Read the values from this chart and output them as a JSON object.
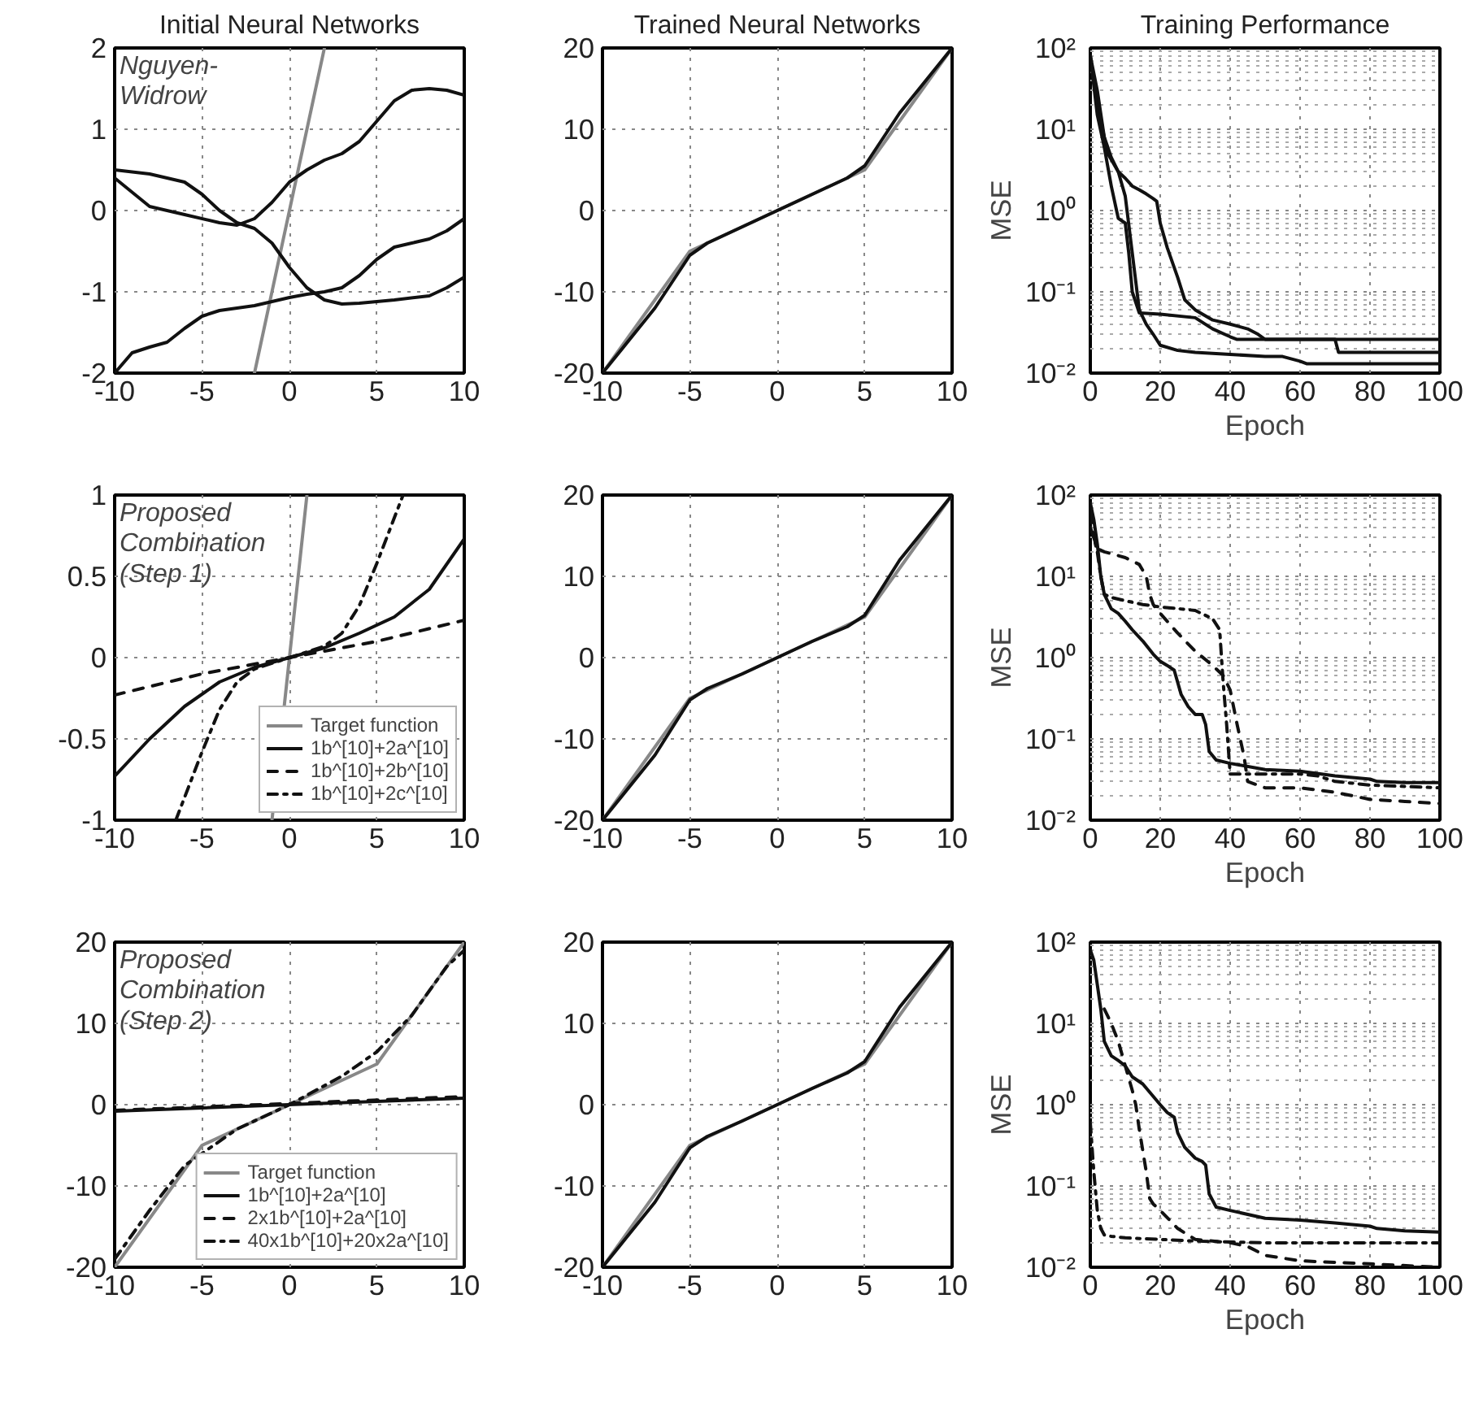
{
  "chart_data": [
    {
      "type": "line",
      "title": "Initial Neural Networks",
      "annotations": [
        "Nguyen-\nWidrow"
      ],
      "xlim": [
        -10,
        10
      ],
      "ylim": [
        -2,
        2
      ],
      "xticks": [
        -10,
        -5,
        0,
        5,
        10
      ],
      "yticks": [
        -2,
        -1,
        0,
        1,
        2
      ],
      "grid": true,
      "series": [
        {
          "color": "#888888",
          "line_style": "solid",
          "x": [
            -2,
            2
          ],
          "values": [
            -2,
            2
          ]
        },
        {
          "color": "#111111",
          "line_style": "solid",
          "x": [
            -10,
            -8,
            -6,
            -4,
            -3,
            -2,
            -1,
            0,
            1,
            2,
            3,
            4,
            5,
            6,
            7,
            8,
            9,
            10
          ],
          "values": [
            0.4,
            0.05,
            -0.05,
            -0.15,
            -0.18,
            -0.1,
            0.1,
            0.35,
            0.5,
            0.62,
            0.7,
            0.85,
            1.1,
            1.35,
            1.48,
            1.5,
            1.48,
            1.42
          ]
        },
        {
          "color": "#111111",
          "line_style": "solid",
          "x": [
            -10,
            -8,
            -6,
            -5,
            -4,
            -3,
            -2,
            -1,
            0,
            1,
            2,
            3,
            4,
            6,
            8,
            9,
            10
          ],
          "values": [
            0.5,
            0.45,
            0.35,
            0.2,
            0.0,
            -0.15,
            -0.22,
            -0.4,
            -0.7,
            -0.95,
            -1.1,
            -1.15,
            -1.14,
            -1.1,
            -1.05,
            -0.95,
            -0.82
          ]
        },
        {
          "color": "#111111",
          "line_style": "solid",
          "x": [
            -10,
            -9,
            -8,
            -7,
            -6,
            -5,
            -4,
            -3,
            -2,
            -1,
            0,
            1,
            2,
            3,
            4,
            5,
            6,
            7,
            8,
            9,
            10
          ],
          "values": [
            -2.0,
            -1.75,
            -1.68,
            -1.62,
            -1.45,
            -1.3,
            -1.23,
            -1.2,
            -1.17,
            -1.12,
            -1.07,
            -1.03,
            -1.0,
            -0.95,
            -0.8,
            -0.6,
            -0.45,
            -0.4,
            -0.35,
            -0.25,
            -0.1
          ]
        }
      ]
    },
    {
      "type": "line",
      "title": "Trained Neural Networks",
      "xlim": [
        -10,
        10
      ],
      "ylim": [
        -20,
        20
      ],
      "xticks": [
        -10,
        -5,
        0,
        5,
        10
      ],
      "yticks": [
        -20,
        -10,
        0,
        10,
        20
      ],
      "grid": true,
      "series": [
        {
          "color": "#888888",
          "line_style": "solid",
          "x": [
            -10,
            -5,
            5,
            10
          ],
          "values": [
            -20,
            -5,
            5,
            20
          ]
        },
        {
          "color": "#111111",
          "line_style": "solid",
          "x": [
            -10,
            -7,
            -5,
            -4,
            -2,
            0,
            2,
            4,
            5,
            7,
            10
          ],
          "values": [
            -20,
            -12,
            -5.5,
            -4,
            -2,
            0,
            2,
            4,
            5.5,
            12,
            20
          ]
        }
      ]
    },
    {
      "type": "line",
      "title": "Training Performance",
      "xlabel": "Epoch",
      "ylabel": "MSE",
      "log": "y",
      "xlim": [
        0,
        100
      ],
      "ylim": [
        0.01,
        100
      ],
      "xticks": [
        0,
        20,
        40,
        60,
        80,
        100
      ],
      "yticks": [
        {
          "value": 0.01,
          "label": "10⁻²"
        },
        {
          "value": 0.1,
          "label": "10⁻¹"
        },
        {
          "value": 1,
          "label": "10⁰"
        },
        {
          "value": 10,
          "label": "10¹"
        },
        {
          "value": 100,
          "label": "10²"
        }
      ],
      "grid": true,
      "series": [
        {
          "color": "#111111",
          "line_style": "solid",
          "x": [
            0,
            2,
            5,
            8,
            10,
            12,
            14,
            16,
            18,
            19,
            20,
            22,
            25,
            27,
            30,
            35,
            40,
            45,
            48,
            50,
            55,
            60,
            65,
            70,
            71,
            75,
            80,
            90,
            100
          ],
          "values": [
            80,
            20,
            5,
            3,
            2.5,
            2.0,
            1.8,
            1.6,
            1.4,
            1.3,
            0.7,
            0.35,
            0.15,
            0.08,
            0.06,
            0.045,
            0.04,
            0.035,
            0.03,
            0.026,
            0.026,
            0.026,
            0.026,
            0.026,
            0.018,
            0.018,
            0.018,
            0.018,
            0.018
          ]
        },
        {
          "color": "#111111",
          "line_style": "solid",
          "x": [
            0,
            2,
            4,
            6,
            8,
            10,
            11,
            12,
            14,
            20,
            30,
            35,
            40,
            42,
            50,
            60,
            80,
            100
          ],
          "values": [
            80,
            15,
            6,
            2,
            0.8,
            0.7,
            0.3,
            0.1,
            0.055,
            0.053,
            0.048,
            0.035,
            0.028,
            0.026,
            0.026,
            0.026,
            0.026,
            0.026
          ]
        },
        {
          "color": "#111111",
          "line_style": "solid",
          "x": [
            0,
            2,
            4,
            6,
            8,
            10,
            12,
            14,
            16,
            18,
            20,
            25,
            30,
            40,
            50,
            55,
            60,
            62,
            70,
            80,
            100
          ],
          "values": [
            80,
            30,
            8,
            4.5,
            3,
            1.5,
            0.3,
            0.06,
            0.04,
            0.03,
            0.022,
            0.019,
            0.018,
            0.017,
            0.016,
            0.016,
            0.014,
            0.013,
            0.013,
            0.013,
            0.013
          ]
        }
      ]
    },
    {
      "type": "line",
      "annotations": [
        "Proposed\nCombination\n(Step 1)"
      ],
      "xlim": [
        -10,
        10
      ],
      "ylim": [
        -1,
        1
      ],
      "xticks": [
        -10,
        -5,
        0,
        5,
        10
      ],
      "yticks": [
        -1,
        -0.5,
        0,
        0.5,
        1
      ],
      "grid": true,
      "legend": "bottom right",
      "series": [
        {
          "name": "Target function",
          "color": "#888888",
          "line_style": "solid",
          "x": [
            -1,
            1
          ],
          "values": [
            -1,
            1
          ]
        },
        {
          "name": "1b^[10]+2a^[10]",
          "color": "#111111",
          "line_style": "solid",
          "x": [
            -10,
            -8,
            -6,
            -4,
            -2,
            0,
            2,
            4,
            6,
            8,
            10
          ],
          "values": [
            -0.73,
            -0.5,
            -0.3,
            -0.15,
            -0.06,
            0,
            0.06,
            0.15,
            0.25,
            0.42,
            0.73
          ]
        },
        {
          "name": "1b^[10]+2b^[10]",
          "color": "#111111",
          "line_style": "dashed",
          "x": [
            -10,
            -5,
            0,
            5,
            10
          ],
          "values": [
            -0.23,
            -0.1,
            0,
            0.1,
            0.23
          ]
        },
        {
          "name": "1b^[10]+2c^[10]",
          "color": "#111111",
          "line_style": "dashdot",
          "x": [
            -6.5,
            -5,
            -4,
            -3,
            -2,
            0,
            2,
            3,
            4,
            5,
            6.5
          ],
          "values": [
            -1,
            -0.58,
            -0.32,
            -0.15,
            -0.07,
            0,
            0.07,
            0.15,
            0.32,
            0.58,
            1
          ]
        }
      ]
    },
    {
      "type": "line",
      "xlim": [
        -10,
        10
      ],
      "ylim": [
        -20,
        20
      ],
      "xticks": [
        -10,
        -5,
        0,
        5,
        10
      ],
      "yticks": [
        -20,
        -10,
        0,
        10,
        20
      ],
      "grid": true,
      "series": [
        {
          "color": "#888888",
          "line_style": "solid",
          "x": [
            -10,
            -5,
            5,
            10
          ],
          "values": [
            -20,
            -5,
            5,
            20
          ]
        },
        {
          "color": "#111111",
          "line_style": "solid",
          "x": [
            -10,
            -7,
            -5,
            -4,
            -2,
            0,
            2,
            4,
            5,
            7,
            10
          ],
          "values": [
            -20,
            -12,
            -5.2,
            -3.8,
            -2,
            0,
            2,
            3.8,
            5.2,
            12,
            20
          ]
        }
      ]
    },
    {
      "type": "line",
      "xlabel": "Epoch",
      "ylabel": "MSE",
      "log": "y",
      "xlim": [
        0,
        100
      ],
      "ylim": [
        0.01,
        100
      ],
      "xticks": [
        0,
        20,
        40,
        60,
        80,
        100
      ],
      "yticks": [
        {
          "value": 0.01,
          "label": "10⁻²"
        },
        {
          "value": 0.1,
          "label": "10⁻¹"
        },
        {
          "value": 1,
          "label": "10⁰"
        },
        {
          "value": 10,
          "label": "10¹"
        },
        {
          "value": 100,
          "label": "10²"
        }
      ],
      "grid": true,
      "series": [
        {
          "color": "#111111",
          "line_style": "solid",
          "x": [
            0,
            1,
            2,
            3,
            4,
            6,
            8,
            10,
            12,
            15,
            18,
            20,
            22,
            24,
            26,
            28,
            30,
            32,
            33,
            34,
            36,
            40,
            50,
            60,
            70,
            80,
            82,
            90,
            100
          ],
          "values": [
            80,
            50,
            25,
            10,
            6,
            4,
            3.5,
            2.8,
            2.2,
            1.6,
            1.1,
            0.9,
            0.8,
            0.7,
            0.35,
            0.25,
            0.2,
            0.2,
            0.15,
            0.07,
            0.055,
            0.05,
            0.042,
            0.04,
            0.035,
            0.032,
            0.03,
            0.029,
            0.029
          ]
        },
        {
          "color": "#111111",
          "line_style": "dashed",
          "x": [
            0,
            1,
            2,
            4,
            6,
            10,
            14,
            16,
            17,
            18,
            20,
            25,
            30,
            35,
            38,
            40,
            42,
            44,
            45,
            50,
            60,
            70,
            75,
            80,
            90,
            100
          ],
          "values": [
            60,
            30,
            22,
            20,
            19,
            17,
            14,
            10,
            6,
            4.5,
            3.5,
            2,
            1.2,
            0.8,
            0.6,
            0.4,
            0.15,
            0.06,
            0.03,
            0.025,
            0.025,
            0.022,
            0.02,
            0.018,
            0.017,
            0.016
          ]
        },
        {
          "color": "#111111",
          "line_style": "dashdot",
          "x": [
            0,
            1,
            2,
            3,
            4,
            6,
            10,
            15,
            20,
            25,
            30,
            35,
            37,
            38,
            39,
            40,
            45,
            50,
            60,
            65,
            70,
            80,
            100
          ],
          "values": [
            40,
            30,
            20,
            10,
            6,
            5.5,
            5,
            4.5,
            4.2,
            4,
            3.8,
            3,
            2.2,
            0.5,
            0.15,
            0.037,
            0.037,
            0.037,
            0.037,
            0.035,
            0.03,
            0.027,
            0.025
          ]
        }
      ]
    },
    {
      "type": "line",
      "annotations": [
        "Proposed\nCombination\n(Step 2)"
      ],
      "xlim": [
        -10,
        10
      ],
      "ylim": [
        -20,
        20
      ],
      "xticks": [
        -10,
        -5,
        0,
        5,
        10
      ],
      "yticks": [
        -20,
        -10,
        0,
        10,
        20
      ],
      "grid": true,
      "legend": "bottom right",
      "series": [
        {
          "name": "Target function",
          "color": "#888888",
          "line_style": "solid",
          "x": [
            -10,
            -5,
            5,
            10
          ],
          "values": [
            -20,
            -5,
            5,
            20
          ]
        },
        {
          "name": "1b^[10]+2a^[10]",
          "color": "#111111",
          "line_style": "solid",
          "x": [
            -10,
            10
          ],
          "values": [
            -0.8,
            0.8
          ]
        },
        {
          "name": "2x1b^[10]+2a^[10]",
          "color": "#111111",
          "line_style": "dashed",
          "x": [
            -10,
            10
          ],
          "values": [
            -0.7,
            1.0
          ]
        },
        {
          "name": "40x1b^[10]+20x2a^[10]",
          "color": "#111111",
          "line_style": "dashdot",
          "x": [
            -10,
            -8,
            -6,
            -5,
            -3,
            0,
            3,
            5,
            7,
            9,
            10
          ],
          "values": [
            -19,
            -13,
            -7.5,
            -6,
            -3,
            0,
            3.5,
            6.5,
            11,
            17,
            19
          ]
        }
      ]
    },
    {
      "type": "line",
      "xlim": [
        -10,
        10
      ],
      "ylim": [
        -20,
        20
      ],
      "xticks": [
        -10,
        -5,
        0,
        5,
        10
      ],
      "yticks": [
        -20,
        -10,
        0,
        10,
        20
      ],
      "grid": true,
      "series": [
        {
          "color": "#888888",
          "line_style": "solid",
          "x": [
            -10,
            -5,
            5,
            10
          ],
          "values": [
            -20,
            -5,
            5,
            20
          ]
        },
        {
          "color": "#111111",
          "line_style": "solid",
          "x": [
            -10,
            -7,
            -5,
            -4,
            -2,
            0,
            2,
            4,
            5,
            7,
            10
          ],
          "values": [
            -20,
            -12,
            -5.3,
            -3.9,
            -2,
            0,
            2,
            3.9,
            5.3,
            12,
            20
          ]
        }
      ]
    },
    {
      "type": "line",
      "xlabel": "Epoch",
      "ylabel": "MSE",
      "log": "y",
      "xlim": [
        0,
        100
      ],
      "ylim": [
        0.01,
        100
      ],
      "xticks": [
        0,
        20,
        40,
        60,
        80,
        100
      ],
      "yticks": [
        {
          "value": 0.01,
          "label": "10⁻²"
        },
        {
          "value": 0.1,
          "label": "10⁻¹"
        },
        {
          "value": 1,
          "label": "10⁰"
        },
        {
          "value": 10,
          "label": "10¹"
        },
        {
          "value": 100,
          "label": "10²"
        }
      ],
      "grid": true,
      "series": [
        {
          "color": "#111111",
          "line_style": "solid",
          "x": [
            0,
            1,
            2,
            3,
            4,
            6,
            8,
            10,
            12,
            15,
            20,
            22,
            24,
            25,
            27,
            30,
            32,
            33,
            34,
            36,
            40,
            50,
            60,
            70,
            80,
            82,
            90,
            100
          ],
          "values": [
            80,
            60,
            30,
            15,
            6,
            4,
            3.5,
            3,
            2.2,
            1.8,
            1,
            0.8,
            0.7,
            0.45,
            0.3,
            0.22,
            0.2,
            0.18,
            0.08,
            0.055,
            0.05,
            0.04,
            0.038,
            0.035,
            0.032,
            0.03,
            0.028,
            0.027
          ]
        },
        {
          "color": "#111111",
          "line_style": "dashed",
          "x": [
            4,
            6,
            8,
            10,
            12,
            13,
            14,
            16,
            17,
            18,
            20,
            25,
            30,
            40,
            45,
            50,
            60,
            80,
            100
          ],
          "values": [
            15,
            10,
            6,
            3,
            1.5,
            1,
            0.5,
            0.15,
            0.07,
            0.06,
            0.05,
            0.03,
            0.022,
            0.02,
            0.018,
            0.014,
            0.012,
            0.011,
            0.01
          ]
        },
        {
          "color": "#111111",
          "line_style": "dashdot",
          "x": [
            0,
            1,
            2,
            3,
            4,
            6,
            10,
            20,
            30,
            50,
            100
          ],
          "values": [
            0.6,
            0.15,
            0.05,
            0.03,
            0.025,
            0.024,
            0.023,
            0.022,
            0.021,
            0.02,
            0.02
          ]
        }
      ]
    }
  ]
}
